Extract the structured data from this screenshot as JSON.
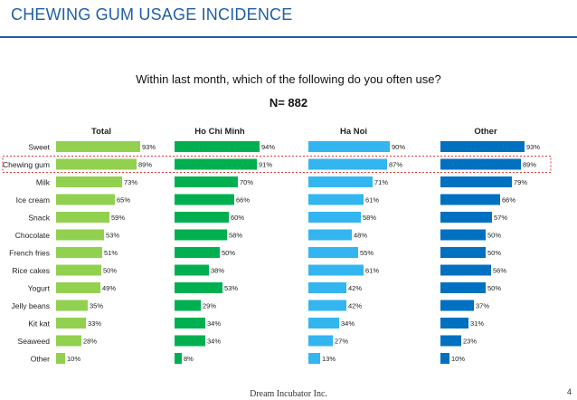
{
  "header": {
    "title": "CHEWING GUM USAGE INCIDENCE"
  },
  "question": "Within last month, which of the following do you often use?",
  "sample_size": "N= 882",
  "footer": {
    "company": "Dream Incubator Inc.",
    "page_number": "4"
  },
  "highlighted_category": "Chewing gum",
  "chart_data": {
    "type": "bar",
    "orientation": "horizontal",
    "categories": [
      "Sweet",
      "Chewing gum",
      "Milk",
      "Ice cream",
      "Snack",
      "Chocolate",
      "French fries",
      "Rice cakes",
      "Yogurt",
      "Jelly beans",
      "Kit kat",
      "Seaweed",
      "Other"
    ],
    "xlim": [
      0,
      100
    ],
    "grid": false,
    "series": [
      {
        "name": "Total",
        "color": "#92d050",
        "values": [
          93,
          89,
          73,
          65,
          59,
          53,
          51,
          50,
          49,
          35,
          33,
          28,
          10
        ]
      },
      {
        "name": "Ho Chi Minh",
        "color": "#00b050",
        "values": [
          94,
          91,
          70,
          66,
          60,
          58,
          50,
          38,
          53,
          29,
          34,
          34,
          8
        ]
      },
      {
        "name": "Ha Noi",
        "color": "#33b5ef",
        "values": [
          90,
          87,
          71,
          61,
          58,
          48,
          55,
          61,
          42,
          42,
          34,
          27,
          13
        ]
      },
      {
        "name": "Other",
        "color": "#0070c0",
        "values": [
          93,
          89,
          79,
          66,
          57,
          50,
          50,
          56,
          50,
          37,
          31,
          23,
          10
        ]
      }
    ]
  }
}
